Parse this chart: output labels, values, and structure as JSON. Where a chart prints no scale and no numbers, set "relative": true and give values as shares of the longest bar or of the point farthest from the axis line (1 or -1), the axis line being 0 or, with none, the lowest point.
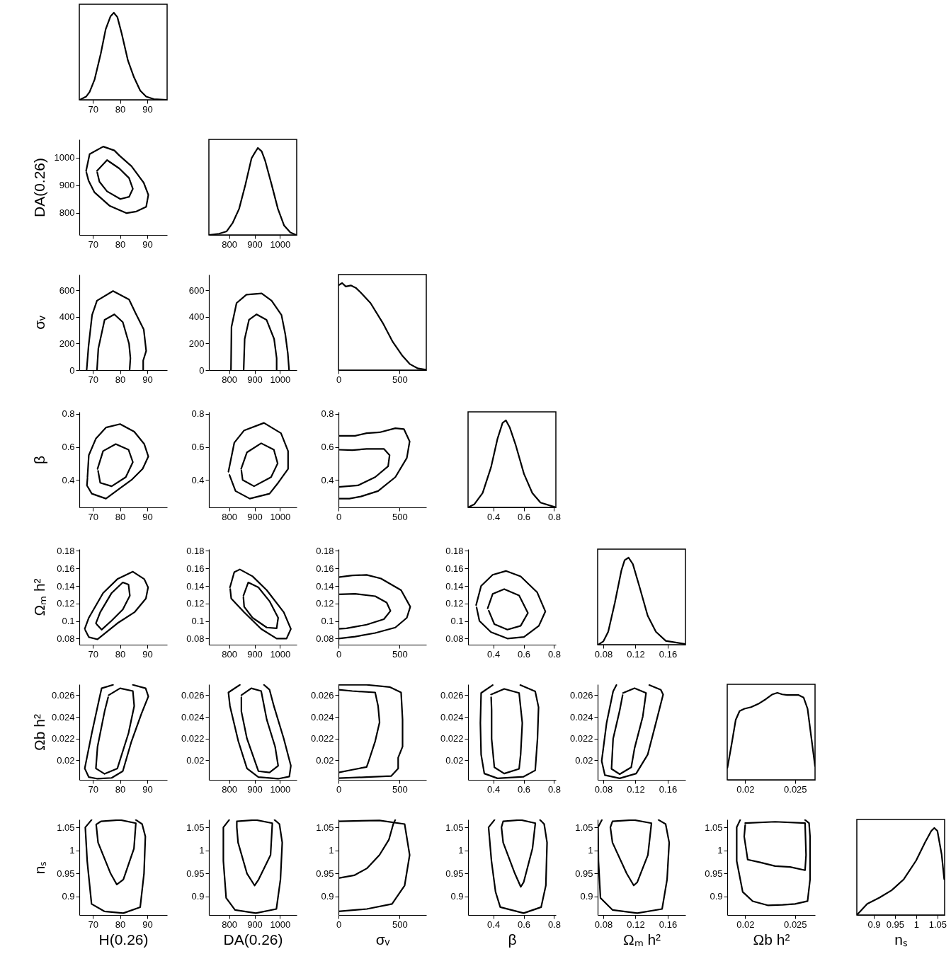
{
  "chart_data": [
    {
      "type": "line",
      "relative": true,
      "tick_labels": "x",
      "xlim": [
        65,
        97.3
      ],
      "xticks": [
        70,
        80,
        90
      ],
      "series": [
        {
          "color": "#000000",
          "x": [
            65.2,
            67.5,
            68.8,
            70.6,
            72.9,
            74.7,
            76.5,
            77.7,
            79.0,
            80.6,
            82.9,
            85.1,
            87.4,
            89.6,
            92.4,
            97.1
          ],
          "values": [
            0,
            0.036,
            0.091,
            0.23,
            0.53,
            0.81,
            0.96,
            1,
            0.95,
            0.76,
            0.45,
            0.26,
            0.105,
            0.036,
            0.008,
            0
          ]
        }
      ]
    },
    {
      "type": "line",
      "ylabel": "DA(0.26)",
      "xlim": [
        65,
        97.3
      ],
      "xticks": [
        70,
        80,
        90
      ],
      "ylim": [
        720,
        1066
      ],
      "yticks": [
        800,
        900,
        1000
      ],
      "series": [
        {
          "color": "#000000",
          "x": [
            67.5,
            68.8,
            73.8,
            77.9,
            79.7,
            84.2,
            88.7,
            90.4,
            89.6,
            86.0,
            82.4,
            76.1,
            70.6,
            68.4,
            67.6
          ],
          "values": [
            952,
            1013,
            1040,
            1026,
            1008,
            969,
            909,
            865,
            822,
            805,
            799,
            826,
            874,
            917,
            947
          ]
        },
        {
          "color": "#000000",
          "x": [
            71.5,
            75.2,
            79.7,
            83.3,
            84.7,
            83.3,
            80.1,
            75.2,
            72.4,
            71.6
          ],
          "values": [
            952,
            991,
            961,
            926,
            887,
            858,
            850,
            878,
            913,
            946
          ]
        }
      ]
    },
    {
      "type": "line",
      "relative": true,
      "tick_labels": "x",
      "xlim": [
        720,
        1066
      ],
      "xticks": [
        800,
        900,
        1000
      ],
      "series": [
        {
          "color": "#000000",
          "x": [
            720,
            760,
            790,
            814,
            839,
            864,
            888,
            900,
            913,
            928,
            942,
            967,
            992,
            1016,
            1041,
            1064
          ],
          "values": [
            0,
            0.014,
            0.041,
            0.14,
            0.3,
            0.58,
            0.88,
            0.94,
            1,
            0.96,
            0.85,
            0.58,
            0.3,
            0.11,
            0.028,
            0
          ]
        }
      ]
    },
    {
      "type": "line",
      "ylabel": "σᵥ",
      "xlim": [
        65,
        97.3
      ],
      "xticks": [
        70,
        80,
        90
      ],
      "ylim": [
        0,
        718
      ],
      "yticks": [
        0,
        200,
        400,
        600
      ],
      "series": [
        {
          "color": "#000000",
          "x": [
            67.7,
            68.4,
            69.7,
            71.5,
            77.4,
            83.3,
            85.6,
            88.7,
            89.6,
            88.5,
            88.5
          ],
          "values": [
            0,
            180,
            414,
            522,
            594,
            531,
            432,
            306,
            144,
            72,
            0
          ]
        },
        {
          "color": "#000000",
          "x": [
            71.5,
            72.0,
            74.3,
            77.9,
            81.0,
            83.3,
            83.8,
            83.5
          ],
          "values": [
            0,
            162,
            378,
            419,
            360,
            198,
            90,
            0
          ]
        }
      ]
    },
    {
      "type": "line",
      "xlim": [
        720,
        1066
      ],
      "xticks": [
        800,
        900,
        1000
      ],
      "ylim": [
        0,
        718
      ],
      "yticks": [
        0,
        200,
        400,
        600
      ],
      "series": [
        {
          "color": "#000000",
          "x": [
            807,
            809,
            829,
            868,
            928,
            967,
            1006,
            1021,
            1031,
            1036
          ],
          "values": [
            0,
            324,
            504,
            567,
            576,
            522,
            414,
            270,
            126,
            0
          ]
        },
        {
          "color": "#000000",
          "x": [
            857,
            861,
            878,
            908,
            947,
            977,
            987,
            987
          ],
          "values": [
            0,
            234,
            378,
            419,
            378,
            234,
            90,
            0
          ]
        }
      ]
    },
    {
      "type": "line",
      "relative": true,
      "tick_labels": "x",
      "xlim": [
        0,
        718
      ],
      "xticks": [
        0,
        500
      ],
      "series": [
        {
          "color": "#000000",
          "x": [
            4,
            30,
            60,
            101,
            141,
            181,
            262,
            363,
            444,
            524,
            585,
            645,
            712
          ],
          "values": [
            0.978,
            1,
            0.96,
            0.973,
            0.946,
            0.892,
            0.77,
            0.54,
            0.324,
            0.162,
            0.068,
            0.022,
            0.005
          ]
        }
      ]
    },
    {
      "type": "line",
      "ylabel": "β",
      "xlim": [
        65,
        97.3
      ],
      "xticks": [
        70,
        80,
        90
      ],
      "ylim": [
        0.234,
        0.812
      ],
      "yticks": [
        0.4,
        0.6,
        0.8
      ],
      "series": [
        {
          "color": "#000000",
          "x": [
            68.0,
            68.5,
            71.1,
            74.8,
            80,
            85.2,
            88.9,
            90.4,
            88.3,
            84.2,
            80,
            74.8,
            69.6,
            67.8,
            68.0
          ],
          "values": [
            0.417,
            0.55,
            0.65,
            0.717,
            0.738,
            0.692,
            0.617,
            0.542,
            0.467,
            0.4,
            0.35,
            0.287,
            0.317,
            0.367,
            0.41
          ]
        },
        {
          "color": "#000000",
          "x": [
            71.7,
            73.75,
            78.4,
            83.1,
            84.7,
            82.1,
            76.9,
            72.7,
            71.9
          ],
          "values": [
            0.467,
            0.575,
            0.617,
            0.583,
            0.508,
            0.417,
            0.362,
            0.383,
            0.455
          ]
        }
      ]
    },
    {
      "type": "line",
      "xlim": [
        720,
        1066
      ],
      "xticks": [
        800,
        900,
        1000
      ],
      "ylim": [
        0.234,
        0.812
      ],
      "yticks": [
        0.4,
        0.6,
        0.8
      ],
      "series": [
        {
          "color": "#000000",
          "x": [
            797,
            820,
            859,
            937,
            1004,
            1032,
            1032,
            993,
            959,
            881,
            825,
            801
          ],
          "values": [
            0.45,
            0.625,
            0.7,
            0.745,
            0.683,
            0.575,
            0.467,
            0.383,
            0.317,
            0.287,
            0.333,
            0.43
          ]
        },
        {
          "color": "#000000",
          "x": [
            847,
            870,
            926,
            976,
            991,
            965,
            898,
            853,
            848
          ],
          "values": [
            0.467,
            0.567,
            0.622,
            0.583,
            0.5,
            0.417,
            0.362,
            0.4,
            0.457
          ]
        }
      ]
    },
    {
      "type": "line",
      "xlim": [
        0,
        718
      ],
      "xticks": [
        0,
        500
      ],
      "ylim": [
        0.234,
        0.812
      ],
      "yticks": [
        0.4,
        0.6,
        0.8
      ],
      "series": [
        {
          "color": "#000000",
          "x": [
            0,
            136,
            230,
            336,
            465,
            535,
            582,
            559,
            465,
            324,
            183,
            89,
            0
          ],
          "values": [
            0.667,
            0.667,
            0.683,
            0.688,
            0.713,
            0.708,
            0.633,
            0.533,
            0.417,
            0.333,
            0.3,
            0.287,
            0.287
          ]
        },
        {
          "color": "#000000",
          "x": [
            0,
            113,
            230,
            371,
            418,
            406,
            300,
            160,
            0
          ],
          "values": [
            0.583,
            0.58,
            0.588,
            0.588,
            0.55,
            0.483,
            0.417,
            0.367,
            0.358
          ]
        }
      ]
    },
    {
      "type": "line",
      "relative": true,
      "tick_labels": "x",
      "xlim": [
        0.234,
        0.812
      ],
      "xticks": [
        0.4,
        0.6,
        0.8
      ],
      "series": [
        {
          "color": "#000000",
          "x": [
            0.234,
            0.276,
            0.33,
            0.385,
            0.428,
            0.461,
            0.483,
            0.509,
            0.548,
            0.602,
            0.657,
            0.711,
            0.812
          ],
          "values": [
            0,
            0.037,
            0.165,
            0.46,
            0.79,
            0.97,
            1,
            0.916,
            0.714,
            0.385,
            0.165,
            0.055,
            0
          ]
        }
      ]
    },
    {
      "type": "line",
      "ylabel": "Ωₘ h²",
      "xlim": [
        65,
        97.3
      ],
      "xticks": [
        70,
        80,
        90
      ],
      "ylim": [
        0.073,
        0.182
      ],
      "yticks": [
        0.08,
        0.1,
        0.12,
        0.14,
        0.16,
        0.18
      ],
      "series": [
        {
          "color": "#000000",
          "x": [
            67.0,
            68.5,
            73.75,
            79.0,
            84.7,
            88.9,
            90.3,
            89.5,
            85.3,
            79.0,
            71.7,
            68.5,
            67.2
          ],
          "values": [
            0.091,
            0.1037,
            0.132,
            0.1478,
            0.1563,
            0.1478,
            0.1384,
            0.1257,
            0.11,
            0.0974,
            0.0791,
            0.0816,
            0.0896
          ]
        },
        {
          "color": "#000000",
          "x": [
            71.1,
            72.7,
            76.9,
            81.0,
            83.1,
            83.6,
            81.0,
            76.9,
            73.2,
            71.4
          ],
          "values": [
            0.0974,
            0.11,
            0.132,
            0.144,
            0.1416,
            0.1289,
            0.1131,
            0.1005,
            0.0901,
            0.0963
          ]
        }
      ]
    },
    {
      "type": "line",
      "xlim": [
        720,
        1066
      ],
      "xticks": [
        800,
        900,
        1000
      ],
      "ylim": [
        0.073,
        0.182
      ],
      "yticks": [
        0.08,
        0.1,
        0.12,
        0.14,
        0.16,
        0.18
      ],
      "series": [
        {
          "color": "#000000",
          "x": [
            803,
            820,
            842,
            892,
            948,
            1015,
            1043,
            1026,
            987,
            926,
            859,
            808,
            804
          ],
          "values": [
            0.1384,
            0.1557,
            0.1589,
            0.151,
            0.1352,
            0.11,
            0.091,
            0.08,
            0.08,
            0.091,
            0.11,
            0.1257,
            0.1365
          ]
        },
        {
          "color": "#000000",
          "x": [
            856,
            875,
            915,
            959,
            993,
            987,
            948,
            892,
            859,
            856
          ],
          "values": [
            0.1289,
            0.144,
            0.1384,
            0.1226,
            0.1037,
            0.0917,
            0.0926,
            0.1037,
            0.1163,
            0.127
          ]
        }
      ]
    },
    {
      "type": "line",
      "xlim": [
        0,
        718
      ],
      "xticks": [
        0,
        500
      ],
      "ylim": [
        0.073,
        0.182
      ],
      "yticks": [
        0.08,
        0.1,
        0.12,
        0.14,
        0.16,
        0.18
      ],
      "series": [
        {
          "color": "#000000",
          "x": [
            0,
            113,
            230,
            347,
            512,
            587,
            559,
            465,
            300,
            136,
            0
          ],
          "values": [
            0.15,
            0.152,
            0.1526,
            0.1485,
            0.1352,
            0.1163,
            0.1037,
            0.0926,
            0.0863,
            0.0822,
            0.08
          ]
        },
        {
          "color": "#000000",
          "x": [
            0,
            136,
            300,
            394,
            425,
            371,
            230,
            66,
            0
          ],
          "values": [
            0.1305,
            0.1311,
            0.1283,
            0.121,
            0.1115,
            0.1021,
            0.0958,
            0.0917,
            0.091
          ]
        }
      ]
    },
    {
      "type": "line",
      "xlim": [
        0.234,
        0.812
      ],
      "xticks": [
        0.4,
        0.6,
        0.8
      ],
      "ylim": [
        0.073,
        0.182
      ],
      "yticks": [
        0.08,
        0.1,
        0.12,
        0.14,
        0.16,
        0.18
      ],
      "series": [
        {
          "color": "#000000",
          "x": [
            0.287,
            0.32,
            0.396,
            0.483,
            0.58,
            0.689,
            0.743,
            0.7,
            0.602,
            0.493,
            0.385,
            0.309,
            0.29
          ],
          "values": [
            0.1182,
            0.14,
            0.1527,
            0.1571,
            0.1509,
            0.1327,
            0.1109,
            0.0945,
            0.0818,
            0.08,
            0.0873,
            0.1,
            0.1155
          ]
        },
        {
          "color": "#000000",
          "x": [
            0.363,
            0.396,
            0.472,
            0.57,
            0.628,
            0.58,
            0.493,
            0.407,
            0.37
          ],
          "values": [
            0.1145,
            0.1309,
            0.1364,
            0.1291,
            0.1091,
            0.0945,
            0.0902,
            0.0964,
            0.1118
          ]
        }
      ]
    },
    {
      "type": "line",
      "relative": true,
      "tick_labels": "x",
      "xlim": [
        0.073,
        0.182
      ],
      "xticks": [
        0.08,
        0.12,
        0.16
      ],
      "series": [
        {
          "color": "#000000",
          "x": [
            0.0739,
            0.08,
            0.0861,
            0.0943,
            0.1024,
            0.1065,
            0.1114,
            0.1167,
            0.1249,
            0.1351,
            0.1453,
            0.1576,
            0.182
          ],
          "values": [
            0,
            0.037,
            0.148,
            0.48,
            0.85,
            0.97,
            1,
            0.926,
            0.667,
            0.333,
            0.148,
            0.044,
            0.007
          ]
        }
      ]
    },
    {
      "type": "line",
      "ylabel": "Ωb h²",
      "xlim": [
        65,
        97.3
      ],
      "xticks": [
        70,
        80,
        90
      ],
      "ylim": [
        0.0182,
        0.027
      ],
      "yticks": [
        0.02,
        0.022,
        0.024,
        0.026
      ],
      "series": [
        {
          "color": "#000000",
          "x": [
            77.4,
            73.2,
            72.2,
            69.6,
            67.0,
            68.5,
            71.7,
            76.9,
            81.0,
            84.2,
            87.8,
            90.4,
            89.4,
            84.7
          ],
          "values": [
            0.02695,
            0.02663,
            0.0255,
            0.0225,
            0.01925,
            0.01845,
            0.0183,
            0.01838,
            0.019,
            0.02175,
            0.02425,
            0.02588,
            0.02663,
            0.02695
          ]
        },
        {
          "color": "#000000",
          "x": [
            75.8,
            80,
            84.7,
            85.2,
            83.1,
            79.0,
            74.3,
            71.1,
            71.7,
            74.3,
            75.6
          ],
          "values": [
            0.026,
            0.02663,
            0.02638,
            0.025,
            0.0225,
            0.01925,
            0.01875,
            0.01925,
            0.02125,
            0.0245,
            0.0258
          ]
        }
      ]
    },
    {
      "type": "line",
      "xlim": [
        720,
        1066
      ],
      "xticks": [
        800,
        900,
        1000
      ],
      "ylim": [
        0.0182,
        0.027
      ],
      "yticks": [
        0.02,
        0.022,
        0.024,
        0.026
      ],
      "series": [
        {
          "color": "#000000",
          "x": [
            842,
            797,
            803,
            836,
            870,
            915,
            993,
            1037,
            1043,
            1015,
            976,
            959,
            937
          ],
          "values": [
            0.02695,
            0.02625,
            0.025,
            0.02175,
            0.01925,
            0.01845,
            0.0183,
            0.0185,
            0.0195,
            0.022,
            0.025,
            0.0265,
            0.02695
          ]
        },
        {
          "color": "#000000",
          "x": [
            848,
            887,
            926,
            948,
            981,
            993,
            959,
            915,
            870,
            848,
            848
          ],
          "values": [
            0.026,
            0.02663,
            0.02638,
            0.02375,
            0.02125,
            0.0195,
            0.01888,
            0.019,
            0.022,
            0.0245,
            0.0258
          ]
        }
      ]
    },
    {
      "type": "line",
      "xlim": [
        0,
        718
      ],
      "xticks": [
        0,
        500
      ],
      "ylim": [
        0.0182,
        0.027
      ],
      "yticks": [
        0.02,
        0.022,
        0.024,
        0.026
      ],
      "series": [
        {
          "color": "#000000",
          "x": [
            0,
            230,
            418,
            512,
            524,
            524,
            488,
            488,
            430,
            230,
            0
          ],
          "values": [
            0.02695,
            0.02695,
            0.02675,
            0.02625,
            0.02375,
            0.02125,
            0.02025,
            0.01925,
            0.01855,
            0.01845,
            0.01835
          ]
        },
        {
          "color": "#000000",
          "x": [
            0,
            113,
            300,
            324,
            336,
            300,
            242,
            230,
            113,
            0
          ],
          "values": [
            0.0265,
            0.02638,
            0.02625,
            0.025,
            0.0235,
            0.02175,
            0.01975,
            0.01938,
            0.01913,
            0.01888
          ]
        }
      ]
    },
    {
      "type": "line",
      "xlim": [
        0.234,
        0.812
      ],
      "xticks": [
        0.4,
        0.6,
        0.8
      ],
      "ylim": [
        0.0182,
        0.027
      ],
      "yticks": [
        0.02,
        0.022,
        0.024,
        0.026
      ],
      "series": [
        {
          "color": "#000000",
          "x": [
            0.396,
            0.32,
            0.315,
            0.32,
            0.341,
            0.428,
            0.6,
            0.676,
            0.691,
            0.698,
            0.676,
            0.578
          ],
          "values": [
            0.02693,
            0.0262,
            0.02344,
            0.02052,
            0.01878,
            0.01834,
            0.01849,
            0.01907,
            0.02198,
            0.02489,
            0.02635,
            0.02693
          ]
        },
        {
          "color": "#000000",
          "x": [
            0.385,
            0.472,
            0.57,
            0.591,
            0.58,
            0.57,
            0.472,
            0.407,
            0.389,
            0.389,
            0.386
          ],
          "values": [
            0.02606,
            0.02658,
            0.0262,
            0.02344,
            0.02052,
            0.01921,
            0.01878,
            0.01936,
            0.02198,
            0.0246,
            0.0258
          ]
        }
      ]
    },
    {
      "type": "line",
      "xlim": [
        0.073,
        0.182
      ],
      "xticks": [
        0.08,
        0.12,
        0.16
      ],
      "ylim": [
        0.0182,
        0.027
      ],
      "yticks": [
        0.02,
        0.022,
        0.024,
        0.026
      ],
      "series": [
        {
          "color": "#000000",
          "x": [
            0.0963,
            0.0922,
            0.0841,
            0.078,
            0.082,
            0.1004,
            0.1208,
            0.1351,
            0.1453,
            0.1543,
            0.1514,
            0.1371
          ],
          "values": [
            0.02693,
            0.02635,
            0.02344,
            0.01994,
            0.01863,
            0.01834,
            0.01878,
            0.02052,
            0.02344,
            0.02606,
            0.02649,
            0.02693
          ]
        },
        {
          "color": "#000000",
          "x": [
            0.1045,
            0.1188,
            0.1331,
            0.129,
            0.1188,
            0.1147,
            0.1004,
            0.0902,
            0.0922,
            0.1004,
            0.104
          ],
          "values": [
            0.0262,
            0.02664,
            0.0262,
            0.02402,
            0.02111,
            0.01936,
            0.01872,
            0.01921,
            0.02198,
            0.0246,
            0.026
          ]
        }
      ]
    },
    {
      "type": "line",
      "relative": true,
      "tick_labels": "x",
      "xlim": [
        0.0182,
        0.027
      ],
      "xticks": [
        0.02,
        0.025
      ],
      "series": [
        {
          "color": "#000000",
          "x": [
            0.01822,
            0.01862,
            0.01905,
            0.01944,
            0.01993,
            0.02059,
            0.02141,
            0.02207,
            0.02273,
            0.02322,
            0.02372,
            0.02421,
            0.02536,
            0.02586,
            0.02625,
            0.027
          ],
          "values": [
            0.139,
            0.396,
            0.689,
            0.791,
            0.817,
            0.835,
            0.879,
            0.927,
            0.982,
            1,
            0.982,
            0.974,
            0.974,
            0.945,
            0.817,
            0.158
          ]
        }
      ]
    },
    {
      "type": "line",
      "ylabel": "nₛ",
      "xlabel": "H(0.26)",
      "xlim": [
        65,
        97.3
      ],
      "xticks": [
        70,
        80,
        90
      ],
      "ylim": [
        0.86,
        1.067
      ],
      "yticks": [
        0.9,
        0.95,
        1,
        1.05
      ],
      "series": [
        {
          "color": "#000000",
          "x": [
            69.5,
            67.2,
            67.9,
            69.5,
            74.2,
            81.2,
            87.4,
            88.8,
            89.3,
            88.1,
            85.8
          ],
          "values": [
            1.066,
            1.05,
            0.977,
            0.884,
            0.868,
            0.864,
            0.877,
            0.95,
            1.03,
            1.057,
            1.066
          ]
        },
        {
          "color": "#000000",
          "x": [
            73.0,
            80,
            85.8,
            85.1,
            81.2,
            78.8,
            76.5,
            71.9,
            71.2,
            72.7
          ],
          "values": [
            1.063,
            1.066,
            1.059,
            1.004,
            0.937,
            0.926,
            0.95,
            1.017,
            1.056,
            1.062
          ]
        }
      ]
    },
    {
      "type": "line",
      "xlabel": "DA(0.26)",
      "xlim": [
        720,
        1066
      ],
      "xticks": [
        800,
        900,
        1000
      ],
      "ylim": [
        0.86,
        1.067
      ],
      "yticks": [
        0.9,
        0.95,
        1,
        1.05
      ],
      "series": [
        {
          "color": "#000000",
          "x": [
            800,
            777,
            777,
            788,
            823,
            905,
            986,
            1002,
            1009,
            998,
            979
          ],
          "values": [
            1.066,
            1.05,
            0.977,
            0.897,
            0.871,
            0.864,
            0.873,
            0.937,
            1.017,
            1.057,
            1.066
          ]
        },
        {
          "color": "#000000",
          "x": [
            830,
            905,
            970,
            963,
            916,
            900,
            870,
            835,
            830,
            830
          ],
          "values": [
            1.063,
            1.066,
            1.059,
            0.99,
            0.937,
            0.924,
            0.95,
            1.017,
            1.05,
            1.061
          ]
        }
      ]
    },
    {
      "type": "line",
      "xlabel": "σᵥ",
      "xlim": [
        0,
        718
      ],
      "xticks": [
        0,
        500
      ],
      "ylim": [
        0.86,
        1.067
      ],
      "yticks": [
        0.9,
        0.95,
        1,
        1.05
      ],
      "series": [
        {
          "color": "#000000",
          "x": [
            0,
            335,
            541,
            582,
            541,
            438,
            232,
            0
          ],
          "values": [
            1.063,
            1.065,
            1.057,
            0.99,
            0.924,
            0.884,
            0.873,
            0.868
          ]
        },
        {
          "color": "#000000",
          "x": [
            0,
            129,
            232,
            335,
            412,
            448,
            464
          ],
          "values": [
            0.94,
            0.946,
            0.961,
            0.99,
            1.023,
            1.057,
            1.066
          ]
        }
      ]
    },
    {
      "type": "line",
      "xlabel": "β",
      "xlim": [
        0.234,
        0.812
      ],
      "xticks": [
        0.4,
        0.6,
        0.8
      ],
      "ylim": [
        0.86,
        1.067
      ],
      "yticks": [
        0.9,
        0.95,
        1,
        1.05
      ],
      "series": [
        {
          "color": "#000000",
          "x": [
            0.408,
            0.369,
            0.388,
            0.415,
            0.446,
            0.6,
            0.715,
            0.746,
            0.754,
            0.735,
            0.708
          ],
          "values": [
            1.066,
            1.05,
            0.977,
            0.91,
            0.877,
            0.864,
            0.877,
            0.924,
            1.017,
            1.057,
            1.066
          ]
        },
        {
          "color": "#000000",
          "x": [
            0.465,
            0.581,
            0.677,
            0.658,
            0.6,
            0.581,
            0.542,
            0.465,
            0.454,
            0.463
          ],
          "values": [
            1.063,
            1.066,
            1.059,
            1.004,
            0.931,
            0.921,
            0.95,
            1.017,
            1.05,
            1.061
          ]
        }
      ]
    },
    {
      "type": "line",
      "xlabel": "Ωₘ h²",
      "xlim": [
        0.073,
        0.182
      ],
      "xticks": [
        0.08,
        0.12,
        0.16
      ],
      "ylim": [
        0.86,
        1.067
      ],
      "yticks": [
        0.9,
        0.95,
        1,
        1.05
      ],
      "series": [
        {
          "color": "#000000",
          "x": [
            0.0782,
            0.0735,
            0.074,
            0.0765,
            0.0914,
            0.1222,
            0.153,
            0.1592,
            0.1618,
            0.1574,
            0.1486
          ],
          "values": [
            1.066,
            1.05,
            0.977,
            0.897,
            0.871,
            0.864,
            0.873,
            0.937,
            1.017,
            1.057,
            1.066
          ]
        },
        {
          "color": "#000000",
          "x": [
            0.0914,
            0.1178,
            0.1398,
            0.1354,
            0.1222,
            0.1178,
            0.109,
            0.0914,
            0.0888,
            0.091
          ],
          "values": [
            1.063,
            1.066,
            1.059,
            0.99,
            0.931,
            0.924,
            0.95,
            1.017,
            1.05,
            1.061
          ]
        }
      ]
    },
    {
      "type": "line",
      "xlabel": "Ωb h²",
      "xlim": [
        0.0182,
        0.027
      ],
      "xticks": [
        0.02,
        0.025
      ],
      "ylim": [
        0.86,
        1.067
      ],
      "yticks": [
        0.9,
        0.95,
        1,
        1.05
      ],
      "series": [
        {
          "color": "#000000",
          "x": [
            0.0195,
            0.01915,
            0.01915,
            0.01975,
            0.02075,
            0.02225,
            0.02375,
            0.025,
            0.02625,
            0.0265,
            0.0265,
            0.0264,
            0.026
          ],
          "values": [
            1.066,
            1.05,
            0.977,
            0.91,
            0.89,
            0.881,
            0.882,
            0.884,
            0.89,
            0.937,
            1.03,
            1.059,
            1.066
          ]
        },
        {
          "color": "#000000",
          "x": [
            0.02,
            0.023,
            0.026,
            0.0261,
            0.026,
            0.0245,
            0.023,
            0.0215,
            0.02025,
            0.0199,
            0.02
          ],
          "values": [
            1.059,
            1.062,
            1.059,
            0.99,
            0.957,
            0.964,
            0.966,
            0.974,
            0.98,
            1.03,
            1.055
          ]
        }
      ]
    },
    {
      "type": "line",
      "relative": true,
      "tick_labels": "x",
      "xlabel": "nₛ",
      "xlim": [
        0.86,
        1.067
      ],
      "xticks": [
        0.9,
        0.95,
        1,
        1.05
      ],
      "series": [
        {
          "color": "#000000",
          "x": [
            0.86,
            0.8845,
            0.9132,
            0.942,
            0.9708,
            0.9996,
            1.0212,
            1.0355,
            1.0427,
            1.05,
            1.06,
            1.066
          ],
          "values": [
            0,
            0.128,
            0.199,
            0.284,
            0.411,
            0.624,
            0.837,
            0.965,
            1,
            0.965,
            0.695,
            0.411
          ]
        }
      ]
    }
  ]
}
